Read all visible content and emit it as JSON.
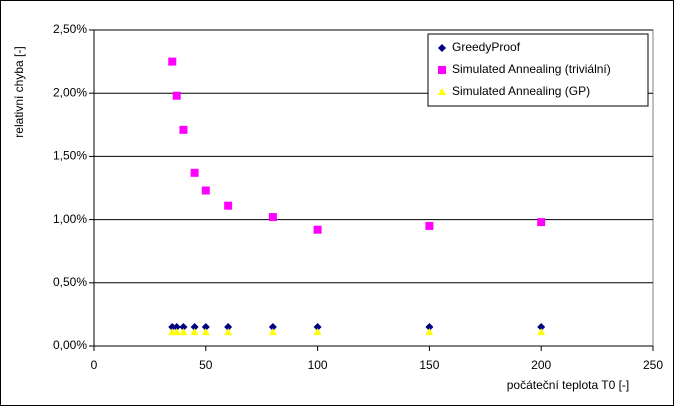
{
  "chart_data": {
    "type": "scatter",
    "x_label": "počáteční teplota T0 [-]",
    "y_label": "relativní chyba [-]",
    "x": [
      35,
      37,
      40,
      45,
      50,
      60,
      80,
      100,
      150,
      200
    ],
    "series": [
      {
        "name": "GreedyProof",
        "color": "#000080",
        "marker": "diamond",
        "values": [
          0.15,
          0.15,
          0.15,
          0.15,
          0.15,
          0.15,
          0.15,
          0.15,
          0.15,
          0.15
        ]
      },
      {
        "name": "Simulated Annealing (triviální)",
        "color": "#ff00ff",
        "marker": "square",
        "values": [
          2.25,
          1.98,
          1.71,
          1.37,
          1.23,
          1.11,
          1.02,
          0.92,
          0.95,
          0.98
        ]
      },
      {
        "name": "Simulated Annealing (GP)",
        "color": "#ffff00",
        "marker": "triangle",
        "values": [
          0.11,
          0.11,
          0.11,
          0.11,
          0.11,
          0.11,
          0.11,
          0.11,
          0.11,
          0.11
        ]
      }
    ],
    "xlim": [
      0,
      250
    ],
    "xticks": [
      0,
      50,
      100,
      150,
      200,
      250
    ],
    "ylim": [
      0,
      2.5
    ],
    "yticks": [
      {
        "value": 0,
        "label": "0,00%"
      },
      {
        "value": 0.5,
        "label": "0,50%"
      },
      {
        "value": 1,
        "label": "1,00%"
      },
      {
        "value": 1.5,
        "label": "1,50%"
      },
      {
        "value": 2,
        "label": "2,00%"
      },
      {
        "value": 2.5,
        "label": "2,50%"
      }
    ],
    "grid": true,
    "legend": "top-right"
  }
}
